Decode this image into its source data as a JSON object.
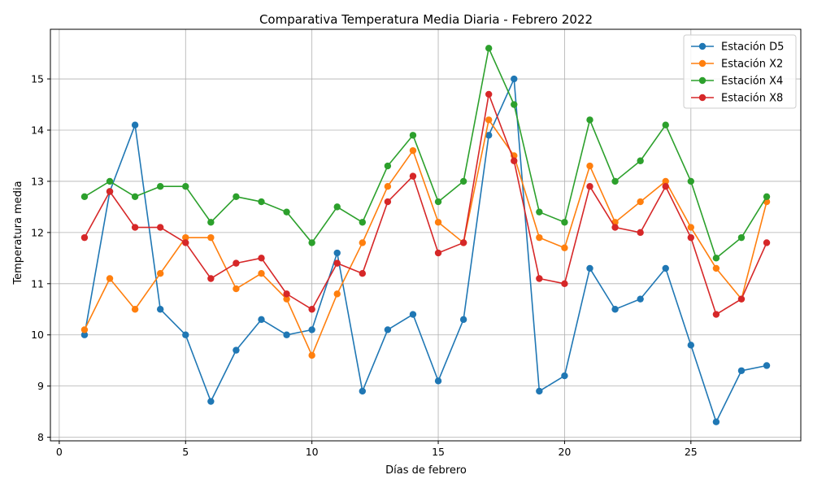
{
  "chart_data": {
    "type": "line",
    "title": "Comparativa Temperatura Media Diaria - Febrero 2022",
    "xlabel": "Días de febrero",
    "ylabel": "Temperatura media",
    "xlim": [
      -0.35,
      29.35
    ],
    "ylim": [
      7.93,
      15.97
    ],
    "xticks": [
      0,
      5,
      10,
      15,
      20,
      25
    ],
    "yticks": [
      8,
      9,
      10,
      11,
      12,
      13,
      14,
      15
    ],
    "grid": true,
    "legend_position": "top-right",
    "x": [
      1,
      2,
      3,
      4,
      5,
      6,
      7,
      8,
      9,
      10,
      11,
      12,
      13,
      14,
      15,
      16,
      17,
      18,
      19,
      20,
      21,
      22,
      23,
      24,
      25,
      26,
      27,
      28
    ],
    "series": [
      {
        "name": "Estación D5",
        "color": "#1f77b4",
        "values": [
          10.0,
          12.8,
          14.1,
          10.5,
          10.0,
          8.7,
          9.7,
          10.3,
          10.0,
          10.1,
          11.6,
          8.9,
          10.1,
          10.4,
          9.1,
          10.3,
          13.9,
          15.0,
          8.9,
          9.2,
          11.3,
          10.5,
          10.7,
          11.3,
          9.8,
          8.3,
          9.3,
          9.4
        ]
      },
      {
        "name": "Estación X2",
        "color": "#ff7f0e",
        "values": [
          10.1,
          11.1,
          10.5,
          11.2,
          11.9,
          11.9,
          10.9,
          11.2,
          10.7,
          9.6,
          10.8,
          11.8,
          12.9,
          13.6,
          12.2,
          11.8,
          14.2,
          13.5,
          11.9,
          11.7,
          13.3,
          12.2,
          12.6,
          13.0,
          12.1,
          11.3,
          10.7,
          12.6
        ]
      },
      {
        "name": "Estación X4",
        "color": "#2ca02c",
        "values": [
          12.7,
          13.0,
          12.7,
          12.9,
          12.9,
          12.2,
          12.7,
          12.6,
          12.4,
          11.8,
          12.5,
          12.2,
          13.3,
          13.9,
          12.6,
          13.0,
          15.6,
          14.5,
          12.4,
          12.2,
          14.2,
          13.0,
          13.4,
          14.1,
          13.0,
          11.5,
          11.9,
          12.7
        ]
      },
      {
        "name": "Estación X8",
        "color": "#d62728",
        "values": [
          11.9,
          12.8,
          12.1,
          12.1,
          11.8,
          11.1,
          11.4,
          11.5,
          10.8,
          10.5,
          11.4,
          11.2,
          12.6,
          13.1,
          11.6,
          11.8,
          14.7,
          13.4,
          11.1,
          11.0,
          12.9,
          12.1,
          12.0,
          12.9,
          11.9,
          10.4,
          10.7,
          11.8
        ]
      }
    ]
  }
}
